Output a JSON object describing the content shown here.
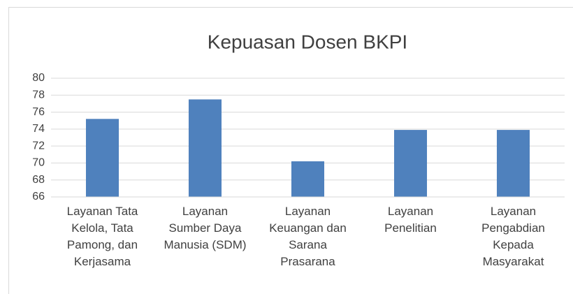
{
  "chart_data": {
    "type": "bar",
    "title": "Kepuasan Dosen BKPI",
    "categories": [
      "Layanan Tata Kelola, Tata Pamong, dan Kerjasama",
      "Layanan Sumber Daya Manusia (SDM)",
      "Layanan Keuangan dan Sarana Prasarana",
      "Layanan Penelitian",
      "Layanan Pengabdian Kepada Masyarakat"
    ],
    "values": [
      75.2,
      77.5,
      70.2,
      73.9,
      73.9
    ],
    "color": "#4f81bd",
    "ylim": [
      66,
      80
    ],
    "yticks": [
      66,
      68,
      70,
      72,
      74,
      76,
      78,
      80
    ],
    "grid": true
  }
}
